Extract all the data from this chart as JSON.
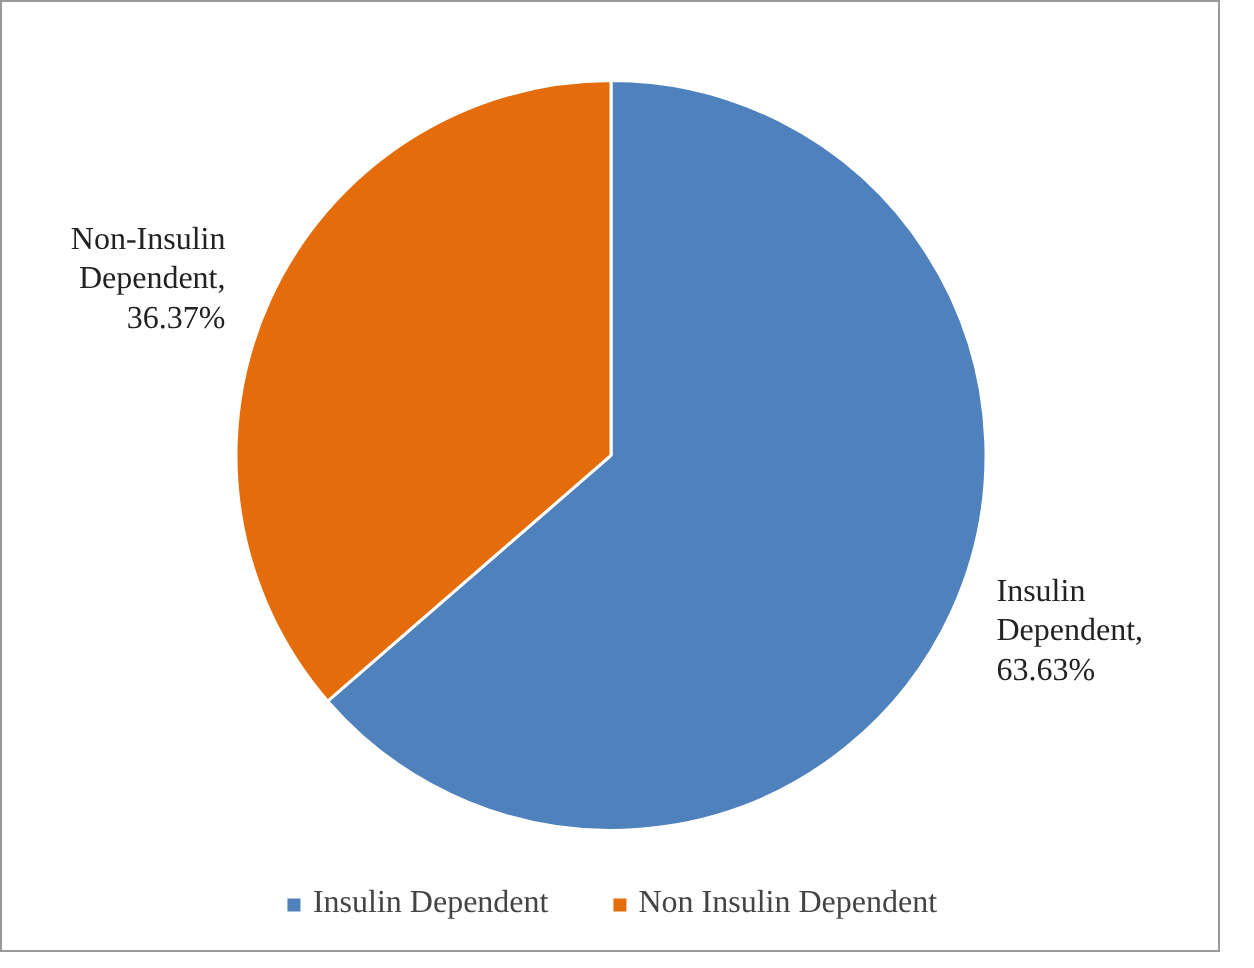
{
  "chart_data": {
    "type": "pie",
    "categories": [
      "Insulin Dependent",
      "Non Insulin Dependent"
    ],
    "values": [
      63.63,
      36.37
    ],
    "colors": [
      "#4f81bd",
      "#e46c0a"
    ],
    "value_labels": [
      "Insulin Dependent, 63.63%",
      "Non-Insulin Dependent, 36.37%"
    ],
    "legend": "bottom"
  }
}
